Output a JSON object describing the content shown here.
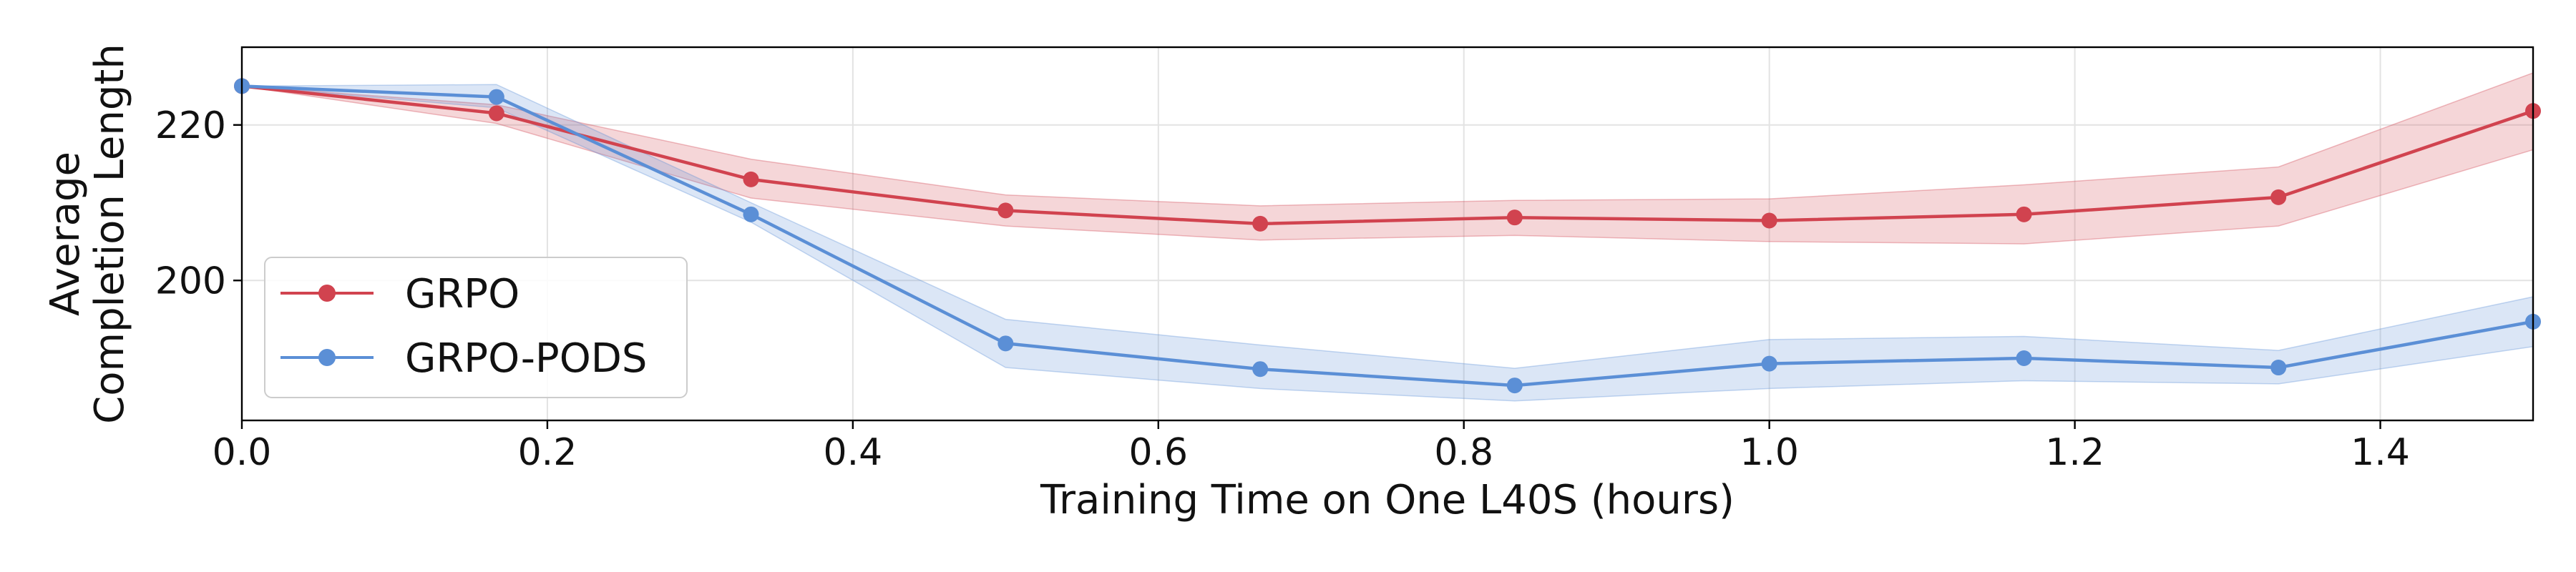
{
  "chart_data": {
    "type": "line",
    "title": "",
    "xlabel": "Training Time on One L40S (hours)",
    "ylabel_lines": [
      "Average",
      "Completion Length"
    ],
    "xlim": [
      0,
      1.5
    ],
    "ylim": [
      182,
      230
    ],
    "xticks": [
      0.0,
      0.2,
      0.4,
      0.6,
      0.8,
      1.0,
      1.2,
      1.4
    ],
    "xtick_labels": [
      "0.0",
      "0.2",
      "0.4",
      "0.6",
      "0.8",
      "1.0",
      "1.2",
      "1.4"
    ],
    "yticks": [
      200,
      220
    ],
    "ytick_labels": [
      "200",
      "220"
    ],
    "grid": true,
    "legend_position": "lower-left",
    "series": [
      {
        "name": "GRPO",
        "color": "#d1434f",
        "x": [
          0,
          0.1667,
          0.3333,
          0.5,
          0.6667,
          0.8333,
          1.0,
          1.1667,
          1.3333,
          1.5
        ],
        "y": [
          225.0,
          221.5,
          213.0,
          209.0,
          207.3,
          208.1,
          207.7,
          208.5,
          210.7,
          221.8
        ],
        "lower": [
          225.0,
          220.2,
          210.6,
          207.0,
          205.2,
          205.8,
          205.0,
          204.7,
          207.0,
          216.8
        ],
        "upper": [
          225.0,
          222.6,
          215.6,
          211.0,
          209.6,
          210.3,
          210.5,
          212.3,
          214.6,
          226.7
        ]
      },
      {
        "name": "GRPO-PODS",
        "color": "#5b8fd6",
        "x": [
          0,
          0.1667,
          0.3333,
          0.5,
          0.6667,
          0.8333,
          1.0,
          1.1667,
          1.3333,
          1.5
        ],
        "y": [
          225.0,
          223.6,
          208.5,
          191.9,
          188.6,
          186.5,
          189.3,
          190.0,
          188.8,
          194.7
        ],
        "lower": [
          225.0,
          222.2,
          207.5,
          188.8,
          186.1,
          184.5,
          186.1,
          187.1,
          186.7,
          191.5
        ],
        "upper": [
          225.0,
          225.2,
          210.0,
          195.0,
          191.7,
          188.7,
          192.4,
          192.8,
          191.0,
          197.9
        ]
      }
    ]
  }
}
